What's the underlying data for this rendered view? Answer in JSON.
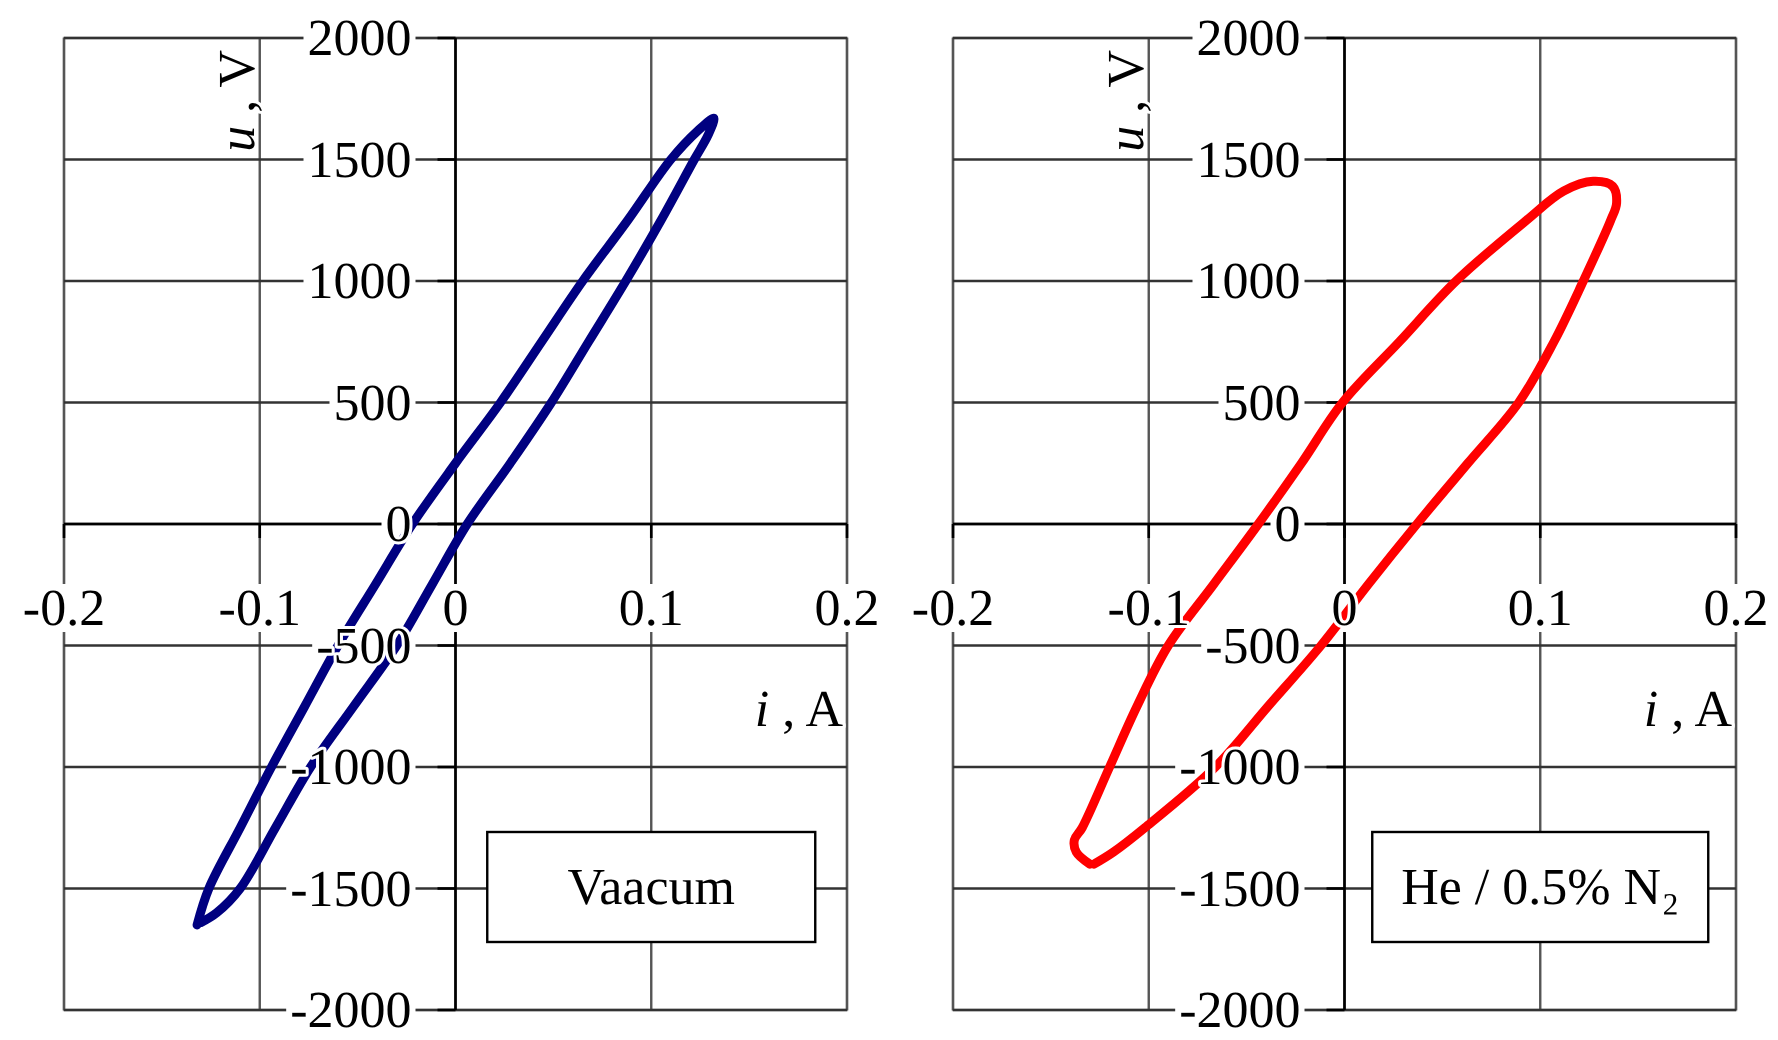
{
  "chart_data": [
    {
      "type": "line",
      "xlabel": "i , A",
      "ylabel": "u , V",
      "xlim": [
        -0.2,
        0.2
      ],
      "ylim": [
        -2000,
        2000
      ],
      "xticks": [
        -0.2,
        -0.1,
        0,
        0.1,
        0.2
      ],
      "yticks": [
        -2000,
        -1500,
        -1000,
        -500,
        0,
        500,
        1000,
        1500,
        2000
      ],
      "grid": true,
      "annotations": [
        "Vaacum"
      ],
      "series": [
        {
          "color": "#000080",
          "x": [
            -0.132,
            -0.126,
            -0.11,
            -0.094,
            -0.077,
            -0.06,
            -0.041,
            -0.022,
            0,
            0.023,
            0.044,
            0.065,
            0.088,
            0.11,
            0.124,
            0.132,
            0.129,
            0.122,
            0.105,
            0.087,
            0.068,
            0.049,
            0.028,
            0.006,
            -0.012,
            -0.03,
            -0.052,
            -0.074,
            -0.092,
            -0.11,
            -0.122,
            -0.13
          ],
          "values": [
            -1650,
            -1500,
            -1250,
            -1000,
            -750,
            -500,
            -250,
            0,
            250,
            500,
            750,
            1000,
            1250,
            1500,
            1620,
            1670,
            1600,
            1500,
            1250,
            1000,
            750,
            500,
            250,
            0,
            -250,
            -500,
            -750,
            -1000,
            -1250,
            -1500,
            -1600,
            -1640
          ]
        }
      ]
    },
    {
      "type": "line",
      "xlabel": "i , A",
      "ylabel": "u , V",
      "xlim": [
        -0.2,
        0.2
      ],
      "ylim": [
        -2000,
        2000
      ],
      "xticks": [
        -0.2,
        -0.1,
        0,
        0.1,
        0.2
      ],
      "yticks": [
        -2000,
        -1500,
        -1000,
        -500,
        0,
        500,
        1000,
        1500,
        2000
      ],
      "grid": true,
      "annotations": [
        "He / 0.5% N₂"
      ],
      "series": [
        {
          "color": "#ff0000",
          "x": [
            -0.13,
            -0.137,
            -0.138,
            -0.134,
            -0.12,
            -0.106,
            -0.09,
            -0.067,
            -0.044,
            -0.022,
            -0.001,
            0.028,
            0.057,
            0.093,
            0.112,
            0.127,
            0.137,
            0.139,
            0.136,
            0.122,
            0.107,
            0.089,
            0.063,
            0.037,
            0.012,
            -0.012,
            -0.039,
            -0.066,
            -0.102,
            -0.118,
            -0.128
          ],
          "values": [
            -1400,
            -1350,
            -1300,
            -1250,
            -1000,
            -750,
            -500,
            -250,
            0,
            250,
            500,
            750,
            1000,
            1250,
            1370,
            1410,
            1390,
            1320,
            1250,
            1000,
            750,
            500,
            250,
            0,
            -250,
            -500,
            -750,
            -1000,
            -1250,
            -1350,
            -1400
          ]
        }
      ]
    }
  ]
}
